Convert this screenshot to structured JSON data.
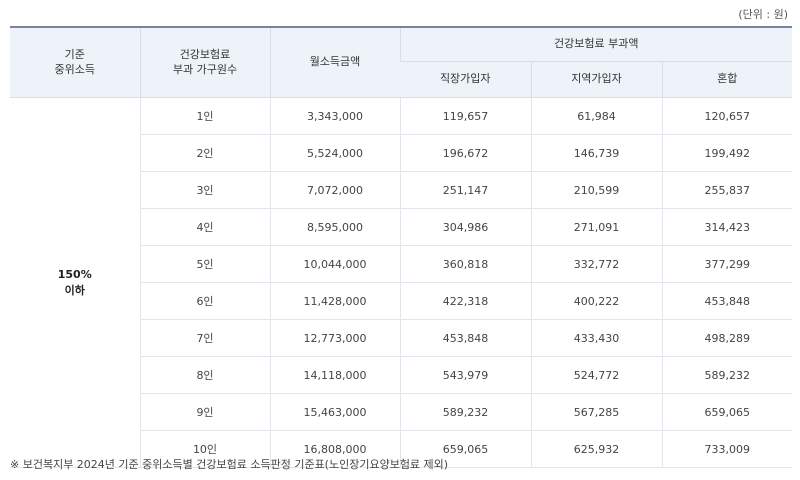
{
  "unit_label": "(단위 : 원)",
  "headers": {
    "income_line1": "기준",
    "income_line2": "중위소득",
    "household_line1": "건강보험료",
    "household_line2": "부과 가구원수",
    "monthly_income": "월소득금액",
    "premium_group": "건강보험료 부과액",
    "employee": "직장가입자",
    "regional": "지역가입자",
    "mixed": "혼합"
  },
  "income_level_line1": "150%",
  "income_level_line2": "이하",
  "rows": [
    {
      "household": "1인",
      "monthly": "3,343,000",
      "employee": "119,657",
      "regional": "61,984",
      "mixed": "120,657"
    },
    {
      "household": "2인",
      "monthly": "5,524,000",
      "employee": "196,672",
      "regional": "146,739",
      "mixed": "199,492"
    },
    {
      "household": "3인",
      "monthly": "7,072,000",
      "employee": "251,147",
      "regional": "210,599",
      "mixed": "255,837"
    },
    {
      "household": "4인",
      "monthly": "8,595,000",
      "employee": "304,986",
      "regional": "271,091",
      "mixed": "314,423"
    },
    {
      "household": "5인",
      "monthly": "10,044,000",
      "employee": "360,818",
      "regional": "332,772",
      "mixed": "377,299"
    },
    {
      "household": "6인",
      "monthly": "11,428,000",
      "employee": "422,318",
      "regional": "400,222",
      "mixed": "453,848"
    },
    {
      "household": "7인",
      "monthly": "12,773,000",
      "employee": "453,848",
      "regional": "433,430",
      "mixed": "498,289"
    },
    {
      "household": "8인",
      "monthly": "14,118,000",
      "employee": "543,979",
      "regional": "524,772",
      "mixed": "589,232"
    },
    {
      "household": "9인",
      "monthly": "15,463,000",
      "employee": "589,232",
      "regional": "567,285",
      "mixed": "659,065"
    },
    {
      "household": "10인",
      "monthly": "16,808,000",
      "employee": "659,065",
      "regional": "625,932",
      "mixed": "733,009"
    }
  ],
  "footnote": "※ 보건복지부 2024년 기준 중위소득별 건강보험료 소득판정 기준표(노인장기요양보험료 제외)"
}
